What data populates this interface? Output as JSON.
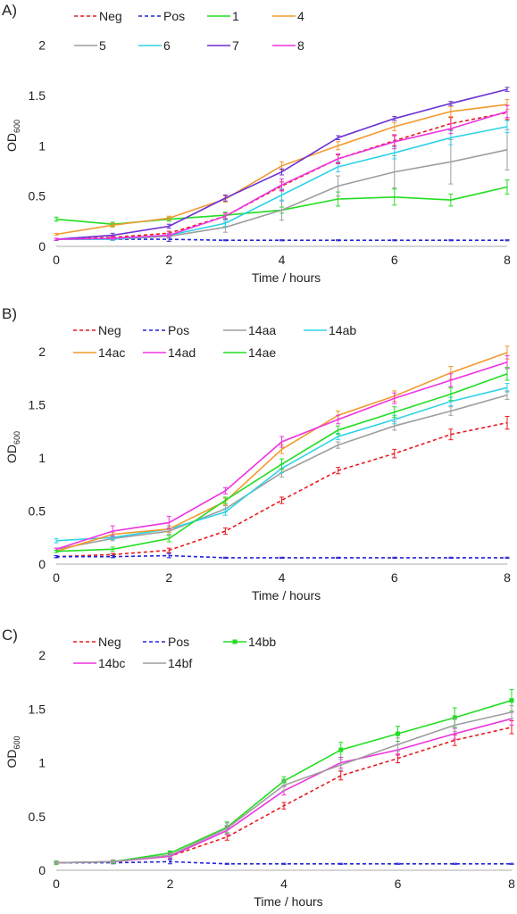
{
  "chart_data": [
    {
      "type": "line",
      "panel_label": "A)",
      "xlabel": "Time / hours",
      "ylabel": "OD",
      "ylabel_sub": "600",
      "xlim": [
        0,
        8
      ],
      "ylim": [
        0,
        2.2
      ],
      "xticks": [
        0,
        2,
        4,
        6,
        8
      ],
      "yticks": [
        0,
        0.5,
        1,
        1.5,
        2
      ],
      "ytick_labels": [
        "0",
        "0.5",
        "1",
        "1.5",
        "2"
      ],
      "x": [
        0,
        1,
        2,
        3,
        4,
        5,
        6,
        7,
        8
      ],
      "series": [
        {
          "name": "Neg",
          "color": "#e8191f",
          "dashed": true,
          "values": [
            0.07,
            0.09,
            0.13,
            0.3,
            0.6,
            0.87,
            1.05,
            1.22,
            1.33
          ],
          "err": [
            0.01,
            0.01,
            0.02,
            0.03,
            0.04,
            0.04,
            0.05,
            0.06,
            0.07
          ]
        },
        {
          "name": "Pos",
          "color": "#2424d8",
          "dashed": true,
          "values": [
            0.07,
            0.07,
            0.07,
            0.06,
            0.06,
            0.06,
            0.06,
            0.06,
            0.06
          ],
          "err": [
            0.01,
            0.01,
            0.02,
            0.005,
            0.005,
            0.005,
            0.005,
            0.005,
            0.005
          ]
        },
        {
          "name": "1",
          "color": "#22dd22",
          "values": [
            0.27,
            0.22,
            0.27,
            0.31,
            0.36,
            0.47,
            0.49,
            0.46,
            0.59
          ],
          "err": [
            0.02,
            0.02,
            0.02,
            0.03,
            0.03,
            0.07,
            0.08,
            0.06,
            0.07
          ]
        },
        {
          "name": "4",
          "color": "#f29a2e",
          "values": [
            0.12,
            0.21,
            0.28,
            0.47,
            0.8,
            1.0,
            1.19,
            1.34,
            1.41
          ],
          "err": [
            0.01,
            0.02,
            0.02,
            0.03,
            0.04,
            0.04,
            0.04,
            0.05,
            0.05
          ]
        },
        {
          "name": "5",
          "color": "#9e9e9e",
          "values": [
            0.07,
            0.07,
            0.1,
            0.19,
            0.36,
            0.6,
            0.74,
            0.84,
            0.96
          ],
          "err": [
            0.01,
            0.01,
            0.02,
            0.05,
            0.1,
            0.1,
            0.16,
            0.22,
            0.2
          ]
        },
        {
          "name": "6",
          "color": "#2fd3e6",
          "values": [
            0.07,
            0.07,
            0.11,
            0.23,
            0.51,
            0.79,
            0.93,
            1.08,
            1.19
          ],
          "err": [
            0.01,
            0.01,
            0.02,
            0.03,
            0.06,
            0.05,
            0.06,
            0.07,
            0.06
          ]
        },
        {
          "name": "7",
          "color": "#6b2fd4",
          "values": [
            0.07,
            0.11,
            0.2,
            0.48,
            0.74,
            1.08,
            1.27,
            1.42,
            1.56
          ],
          "err": [
            0.01,
            0.02,
            0.02,
            0.03,
            0.03,
            0.02,
            0.02,
            0.02,
            0.02
          ]
        },
        {
          "name": "8",
          "color": "#ee33e0",
          "values": [
            0.07,
            0.08,
            0.11,
            0.3,
            0.61,
            0.87,
            1.04,
            1.17,
            1.34
          ],
          "err": [
            0.01,
            0.01,
            0.02,
            0.03,
            0.06,
            0.05,
            0.07,
            0.05,
            0.06
          ]
        }
      ]
    },
    {
      "type": "line",
      "panel_label": "B)",
      "xlabel": "Time / hours",
      "ylabel": "OD",
      "ylabel_sub": "600",
      "xlim": [
        0,
        8
      ],
      "ylim": [
        0,
        2.2
      ],
      "xticks": [
        0,
        2,
        4,
        6,
        8
      ],
      "yticks": [
        0,
        0.5,
        1,
        1.5,
        2
      ],
      "ytick_labels": [
        "0",
        "0.5",
        "1",
        "1.5",
        "2"
      ],
      "x": [
        0,
        1,
        2,
        3,
        4,
        5,
        6,
        7,
        8
      ],
      "series": [
        {
          "name": "Neg",
          "color": "#e8191f",
          "dashed": true,
          "values": [
            0.07,
            0.09,
            0.13,
            0.31,
            0.6,
            0.88,
            1.04,
            1.22,
            1.33
          ],
          "err": [
            0.01,
            0.01,
            0.02,
            0.03,
            0.03,
            0.03,
            0.04,
            0.05,
            0.06
          ]
        },
        {
          "name": "Pos",
          "color": "#2424d8",
          "dashed": true,
          "values": [
            0.07,
            0.07,
            0.08,
            0.06,
            0.06,
            0.06,
            0.06,
            0.06,
            0.06
          ],
          "err": [
            0.01,
            0.01,
            0.02,
            0.005,
            0.005,
            0.005,
            0.005,
            0.005,
            0.005
          ]
        },
        {
          "name": "14aa",
          "color": "#9e9e9e",
          "values": [
            0.14,
            0.24,
            0.31,
            0.52,
            0.86,
            1.12,
            1.3,
            1.44,
            1.59
          ],
          "err": [
            0.01,
            0.02,
            0.03,
            0.03,
            0.04,
            0.03,
            0.04,
            0.04,
            0.04
          ]
        },
        {
          "name": "14ab",
          "color": "#2fd3e6",
          "values": [
            0.22,
            0.25,
            0.33,
            0.49,
            0.9,
            1.2,
            1.36,
            1.53,
            1.66
          ],
          "err": [
            0.02,
            0.02,
            0.03,
            0.03,
            0.04,
            0.03,
            0.04,
            0.04,
            0.04
          ]
        },
        {
          "name": "14ac",
          "color": "#f29a2e",
          "values": [
            0.12,
            0.28,
            0.33,
            0.59,
            1.08,
            1.4,
            1.58,
            1.8,
            1.99
          ],
          "err": [
            0.01,
            0.02,
            0.03,
            0.03,
            0.04,
            0.04,
            0.05,
            0.06,
            0.06
          ]
        },
        {
          "name": "14ad",
          "color": "#ee33e0",
          "values": [
            0.14,
            0.31,
            0.39,
            0.69,
            1.15,
            1.36,
            1.56,
            1.73,
            1.9
          ],
          "err": [
            0.01,
            0.05,
            0.06,
            0.03,
            0.05,
            0.04,
            0.05,
            0.06,
            0.06
          ]
        },
        {
          "name": "14ae",
          "color": "#22dd22",
          "values": [
            0.12,
            0.14,
            0.24,
            0.6,
            0.94,
            1.26,
            1.43,
            1.6,
            1.79
          ],
          "err": [
            0.01,
            0.02,
            0.03,
            0.03,
            0.05,
            0.04,
            0.05,
            0.06,
            0.06
          ]
        }
      ]
    },
    {
      "type": "line",
      "panel_label": "C)",
      "xlabel": "Time / hours",
      "ylabel": "OD",
      "ylabel_sub": "600",
      "xlim": [
        0,
        8
      ],
      "ylim": [
        0,
        2.2
      ],
      "xticks": [
        0,
        2,
        4,
        6,
        8
      ],
      "yticks": [
        0,
        0.5,
        1,
        1.5,
        2
      ],
      "ytick_labels": [
        "0",
        "0.5",
        "1",
        "1.5",
        "2"
      ],
      "x": [
        0,
        1,
        2,
        3,
        4,
        5,
        6,
        7,
        8
      ],
      "series": [
        {
          "name": "Neg",
          "color": "#e8191f",
          "dashed": true,
          "values": [
            0.07,
            0.08,
            0.13,
            0.31,
            0.6,
            0.88,
            1.04,
            1.21,
            1.33
          ],
          "err": [
            0.01,
            0.01,
            0.02,
            0.03,
            0.03,
            0.04,
            0.04,
            0.05,
            0.06
          ]
        },
        {
          "name": "Pos",
          "color": "#2424d8",
          "dashed": true,
          "values": [
            0.07,
            0.07,
            0.08,
            0.06,
            0.06,
            0.06,
            0.06,
            0.06,
            0.06
          ],
          "err": [
            0.01,
            0.01,
            0.02,
            0.005,
            0.005,
            0.005,
            0.005,
            0.005,
            0.005
          ]
        },
        {
          "name": "14bb",
          "color": "#22dd22",
          "markers": true,
          "values": [
            0.07,
            0.08,
            0.16,
            0.4,
            0.83,
            1.12,
            1.27,
            1.42,
            1.58
          ],
          "err": [
            0.01,
            0.01,
            0.02,
            0.05,
            0.04,
            0.07,
            0.07,
            0.09,
            0.1
          ]
        },
        {
          "name": "14bc",
          "color": "#ee33e0",
          "values": [
            0.07,
            0.08,
            0.13,
            0.37,
            0.74,
            1.0,
            1.12,
            1.27,
            1.41
          ],
          "err": [
            0.01,
            0.01,
            0.02,
            0.04,
            0.04,
            0.05,
            0.05,
            0.05,
            0.06
          ]
        },
        {
          "name": "14bf",
          "color": "#9e9e9e",
          "values": [
            0.07,
            0.08,
            0.14,
            0.39,
            0.79,
            0.98,
            1.17,
            1.35,
            1.47
          ],
          "err": [
            0.01,
            0.01,
            0.02,
            0.05,
            0.05,
            0.05,
            0.06,
            0.06,
            0.06
          ]
        }
      ]
    }
  ]
}
